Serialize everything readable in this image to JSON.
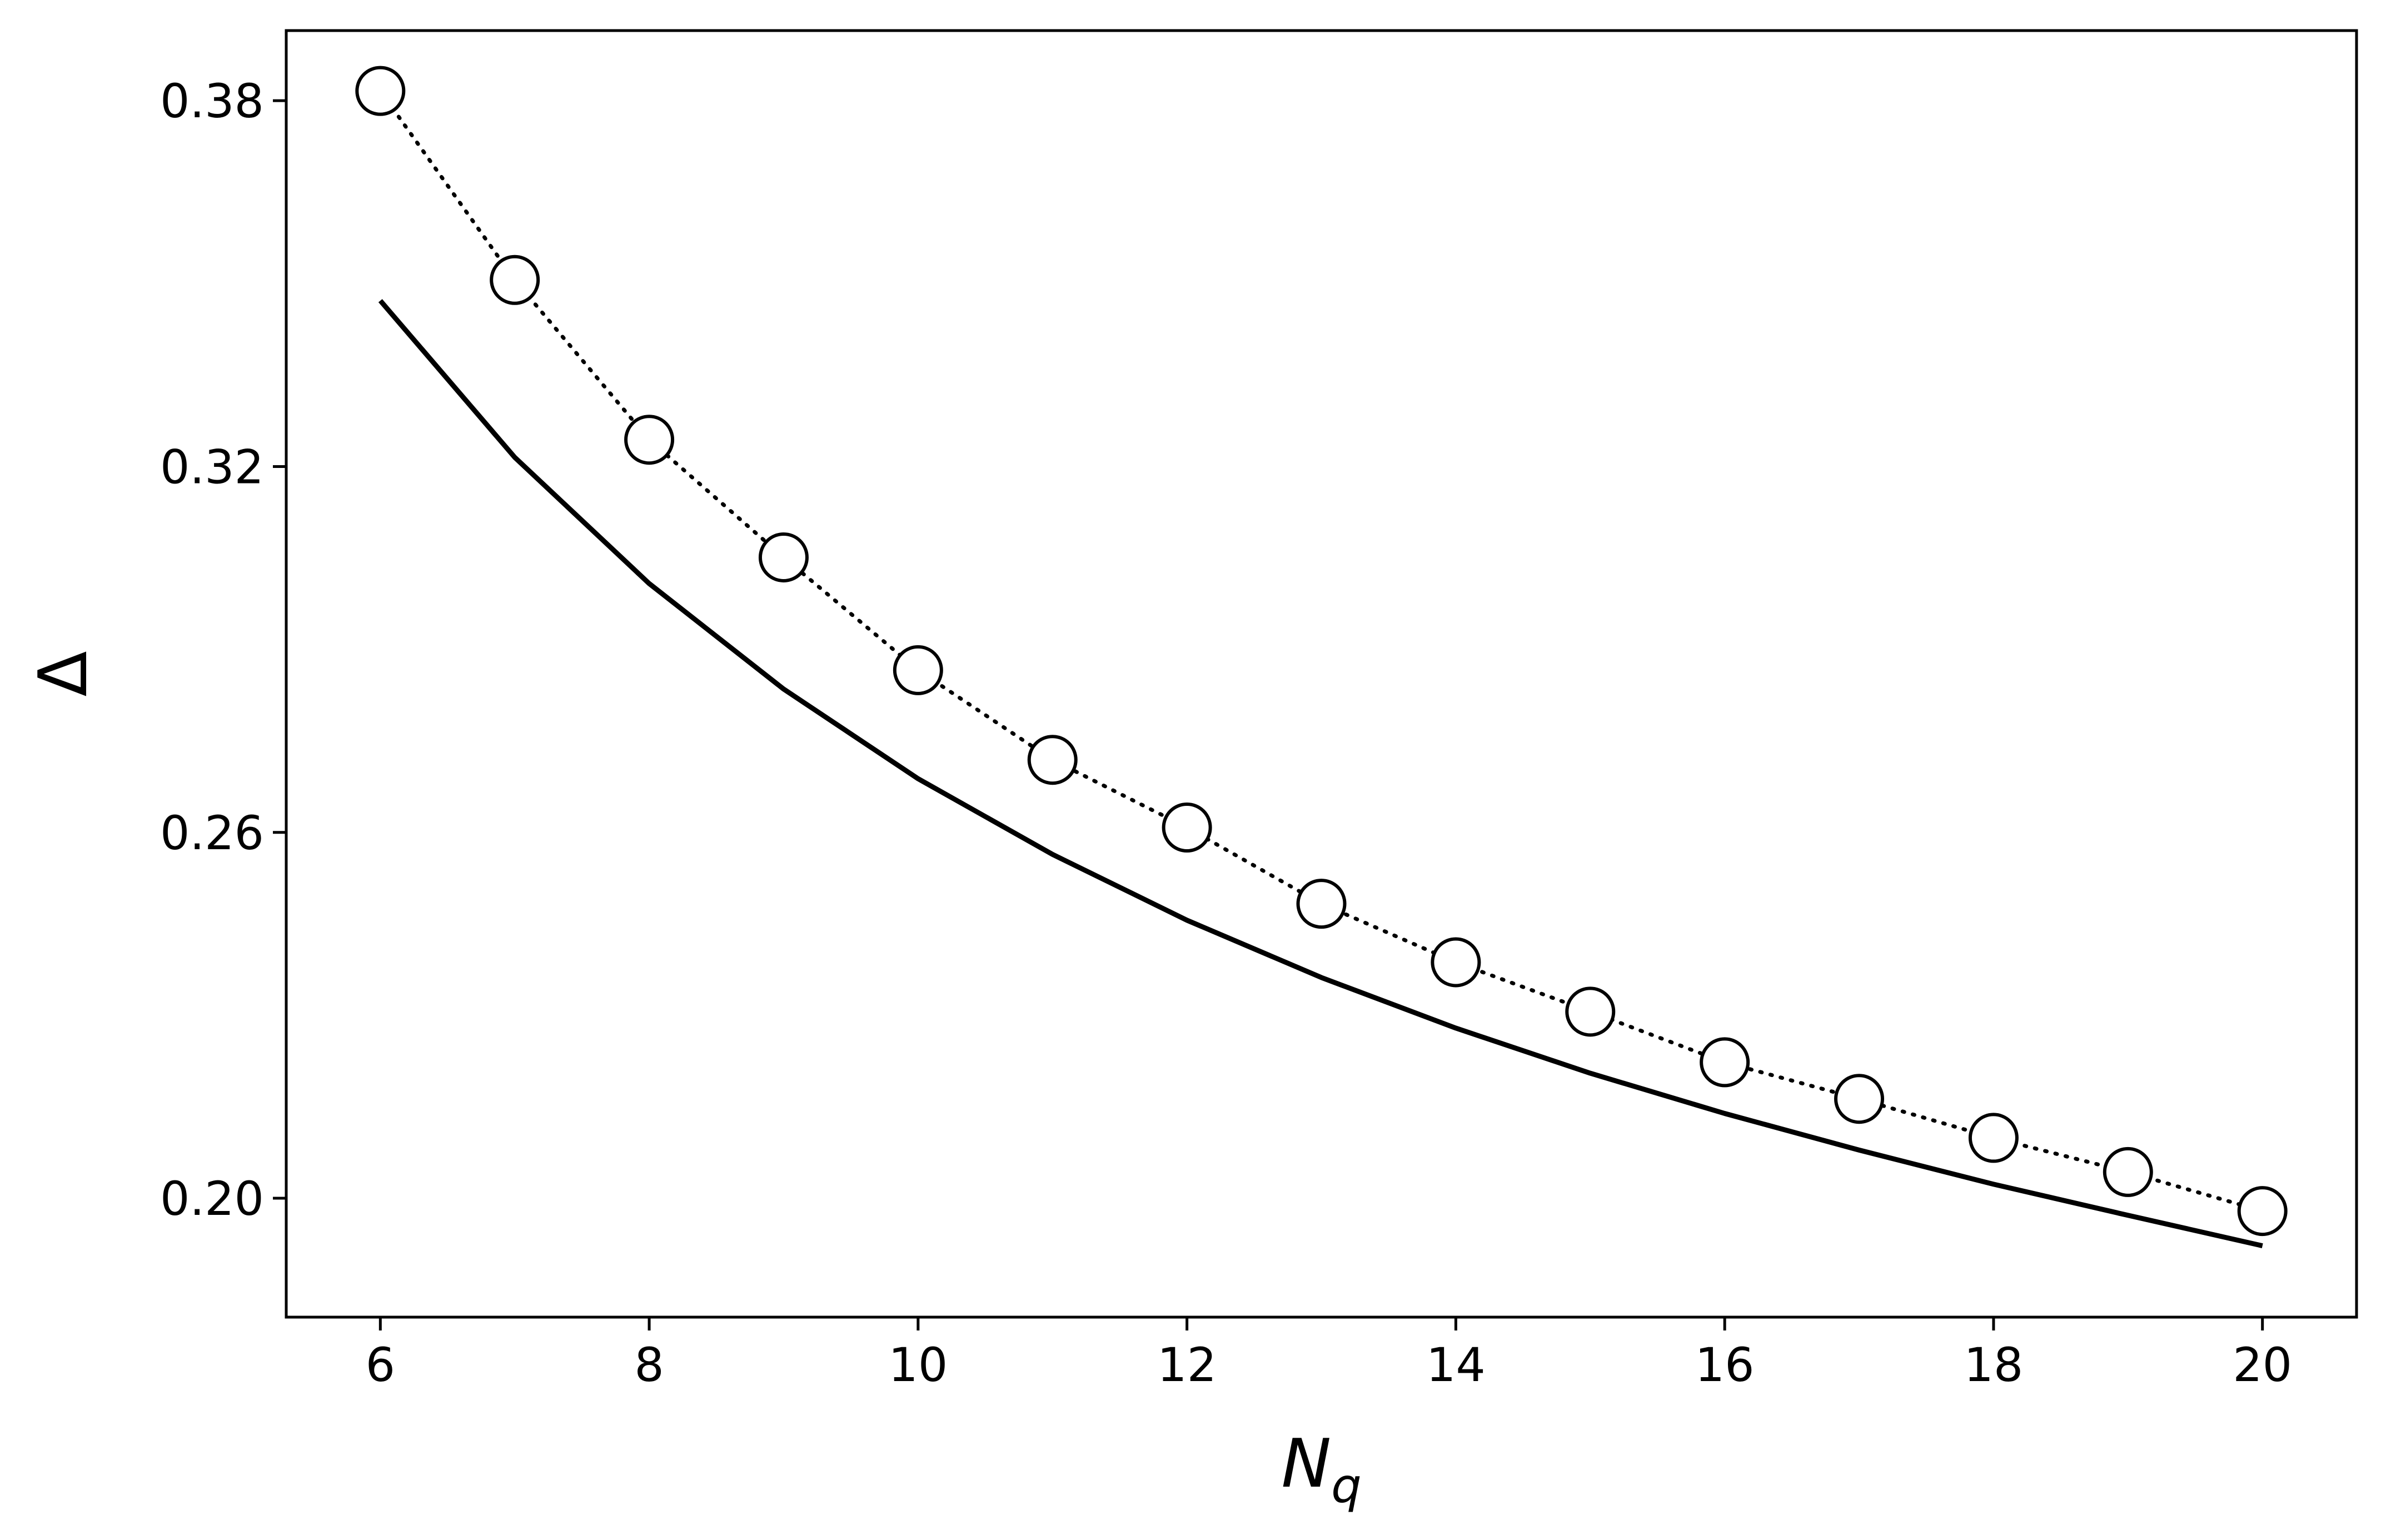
{
  "chart_data": {
    "type": "line",
    "title": "",
    "xlabel_main": "N",
    "xlabel_sub": "q",
    "ylabel": "Δ",
    "xlim": [
      5.3,
      20.7
    ],
    "ylim": [
      0.1805,
      0.3915
    ],
    "xticks": [
      6,
      8,
      10,
      12,
      14,
      16,
      18,
      20
    ],
    "xtick_labels": [
      "6",
      "8",
      "10",
      "12",
      "14",
      "16",
      "18",
      "20"
    ],
    "yticks": [
      0.2,
      0.26,
      0.32,
      0.38
    ],
    "ytick_labels": [
      "0.20",
      "0.26",
      "0.32",
      "0.38"
    ],
    "grid": false,
    "legend": "none",
    "x": [
      6,
      7,
      8,
      9,
      10,
      11,
      12,
      13,
      14,
      15,
      16,
      17,
      18,
      19,
      20
    ],
    "series": [
      {
        "style": "solid",
        "color": "#000000",
        "marker": "none",
        "values": [
          0.3472,
          0.3215,
          0.3008,
          0.2835,
          0.2688,
          0.2564,
          0.2456,
          0.2362,
          0.2279,
          0.2205,
          0.2139,
          0.2079,
          0.2023,
          0.1972,
          0.1922
        ]
      },
      {
        "style": "dotted",
        "color": "#000000",
        "marker": "open-circle",
        "values": [
          0.3816,
          0.3506,
          0.3244,
          0.3051,
          0.2866,
          0.2719,
          0.2608,
          0.2483,
          0.2387,
          0.2306,
          0.2223,
          0.2163,
          0.2099,
          0.2043,
          0.1979
        ]
      }
    ]
  }
}
